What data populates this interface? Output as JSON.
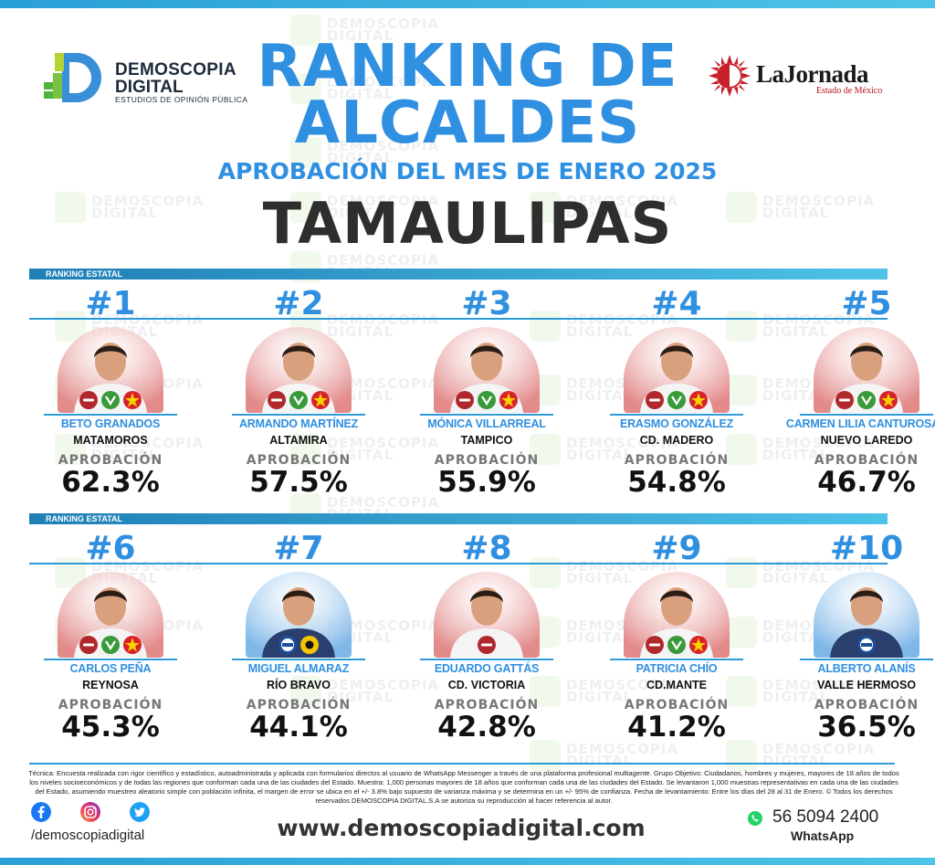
{
  "header": {
    "logo_left": {
      "line1": "DEMOSCOPIA",
      "line2": "DIGITAL",
      "line3": "ESTUDIOS DE OPINIÓN PÚBLICA"
    },
    "logo_right": {
      "name": "LaJornada",
      "sub": "Estado de México"
    },
    "title_line1": "RANKING DE",
    "title_line2": "ALCALDES",
    "subtitle": "APROBACIÓN DEL MES DE ENERO 2025",
    "state": "TAMAULIPAS"
  },
  "watermark": {
    "line1": "DEMOSCOPIA",
    "line2": "DIGITAL",
    "line3": "ESTUDIOS DE OPINIÓN PÚBLICA"
  },
  "section_label": "RANKING ESTATAL",
  "approval_label": "APROBACIÓN",
  "mayors": [
    {
      "rank": "#1",
      "name": "BETO GRANADOS",
      "city": "MATAMOROS",
      "approval": "62.3%",
      "approval_value": 62.3,
      "parties": [
        "morena-logo",
        "verde-logo",
        "pt-logo"
      ]
    },
    {
      "rank": "#2",
      "name": "ARMANDO MARTÍNEZ",
      "city": "ALTAMIRA",
      "approval": "57.5%",
      "approval_value": 57.5,
      "parties": [
        "morena-logo",
        "verde-logo",
        "pt-logo"
      ]
    },
    {
      "rank": "#3",
      "name": "MÓNICA VILLARREAL",
      "city": "TAMPICO",
      "approval": "55.9%",
      "approval_value": 55.9,
      "parties": [
        "morena-logo",
        "verde-logo",
        "pt-logo"
      ]
    },
    {
      "rank": "#4",
      "name": "ERASMO GONZÁLEZ",
      "city": "CD. MADERO",
      "approval": "54.8%",
      "approval_value": 54.8,
      "parties": [
        "morena-logo",
        "verde-logo",
        "pt-logo"
      ]
    },
    {
      "rank": "#5",
      "name": "CARMEN LILIA CANTUROSAS",
      "city": "NUEVO LAREDO",
      "approval": "46.7%",
      "approval_value": 46.7,
      "parties": [
        "morena-logo",
        "verde-logo",
        "pt-logo"
      ]
    },
    {
      "rank": "#6",
      "name": "CARLOS PEÑA",
      "city": "REYNOSA",
      "approval": "45.3%",
      "approval_value": 45.3,
      "parties": [
        "morena-logo",
        "verde-logo",
        "pt-logo"
      ]
    },
    {
      "rank": "#7",
      "name": "MIGUEL ALMARAZ",
      "city": "RÍO BRAVO",
      "approval": "44.1%",
      "approval_value": 44.1,
      "parties": [
        "pan-logo",
        "prd-logo"
      ]
    },
    {
      "rank": "#8",
      "name": "EDUARDO GATTÁS",
      "city": "CD. VICTORIA",
      "approval": "42.8%",
      "approval_value": 42.8,
      "parties": [
        "morena-logo"
      ]
    },
    {
      "rank": "#9",
      "name": "PATRICIA CHÍO",
      "city": "CD.MANTE",
      "approval": "41.2%",
      "approval_value": 41.2,
      "parties": [
        "morena-logo",
        "verde-logo",
        "pt-logo"
      ]
    },
    {
      "rank": "#10",
      "name": "ALBERTO ALANÍS",
      "city": "VALLE HERMOSO",
      "approval": "36.5%",
      "approval_value": 36.5,
      "parties": [
        "pan-logo"
      ]
    }
  ],
  "footer": {
    "technical": "Técnica: Encuesta realizada con rigor científico y estadístico, autoadministrada y aplicada con formularios directos al usuario de WhatsApp Messenger a través de una plataforma profesional multiagente. Grupo Objetivo: Ciudadanos, hombres y mujeres, mayores de 18 años de todos los niveles socioeconómicos y de todas las regiones que conforman cada una de las ciudades del Estado. Muestra: 1,000 personas mayores de 18 años que conforman cada una de las ciudades del Estado. Se levantaron 1,000 muestras representativas en cada una de las ciudades del Estado, asumiendo muestreo aleatorio simple con población infinita, el margen de error se ubica en el +/- 3.8% bajo supuesto de varianza máxima y se determina en un +/- 95% de confianza. Fecha de levantamiento: Entre los días del 28 al 31 de Enero. © Todos los derechos reservados DEMOSCOPIA DIGITAL,S.A se autoriza su reproducción al hacer referencia al autor.",
    "handle": "/demoscopiadigital",
    "website": "www.demoscopiadigital.com",
    "phone": "56 5094 2400",
    "whatsapp_label": "WhatsApp",
    "social_icons": [
      "facebook-icon",
      "instagram-icon",
      "twitter-icon"
    ]
  },
  "colors": {
    "accent_blue": "#2f8fe0",
    "bar_blue": "#2e9bd9",
    "photo_bg": "#e38a8a",
    "photo_bg_blue": "#7fb7e8",
    "morena": "#b0282c",
    "verde": "#3a9a3a",
    "pt": "#d8222a",
    "pan": "#1c4f9c",
    "prd": "#f5c400"
  }
}
